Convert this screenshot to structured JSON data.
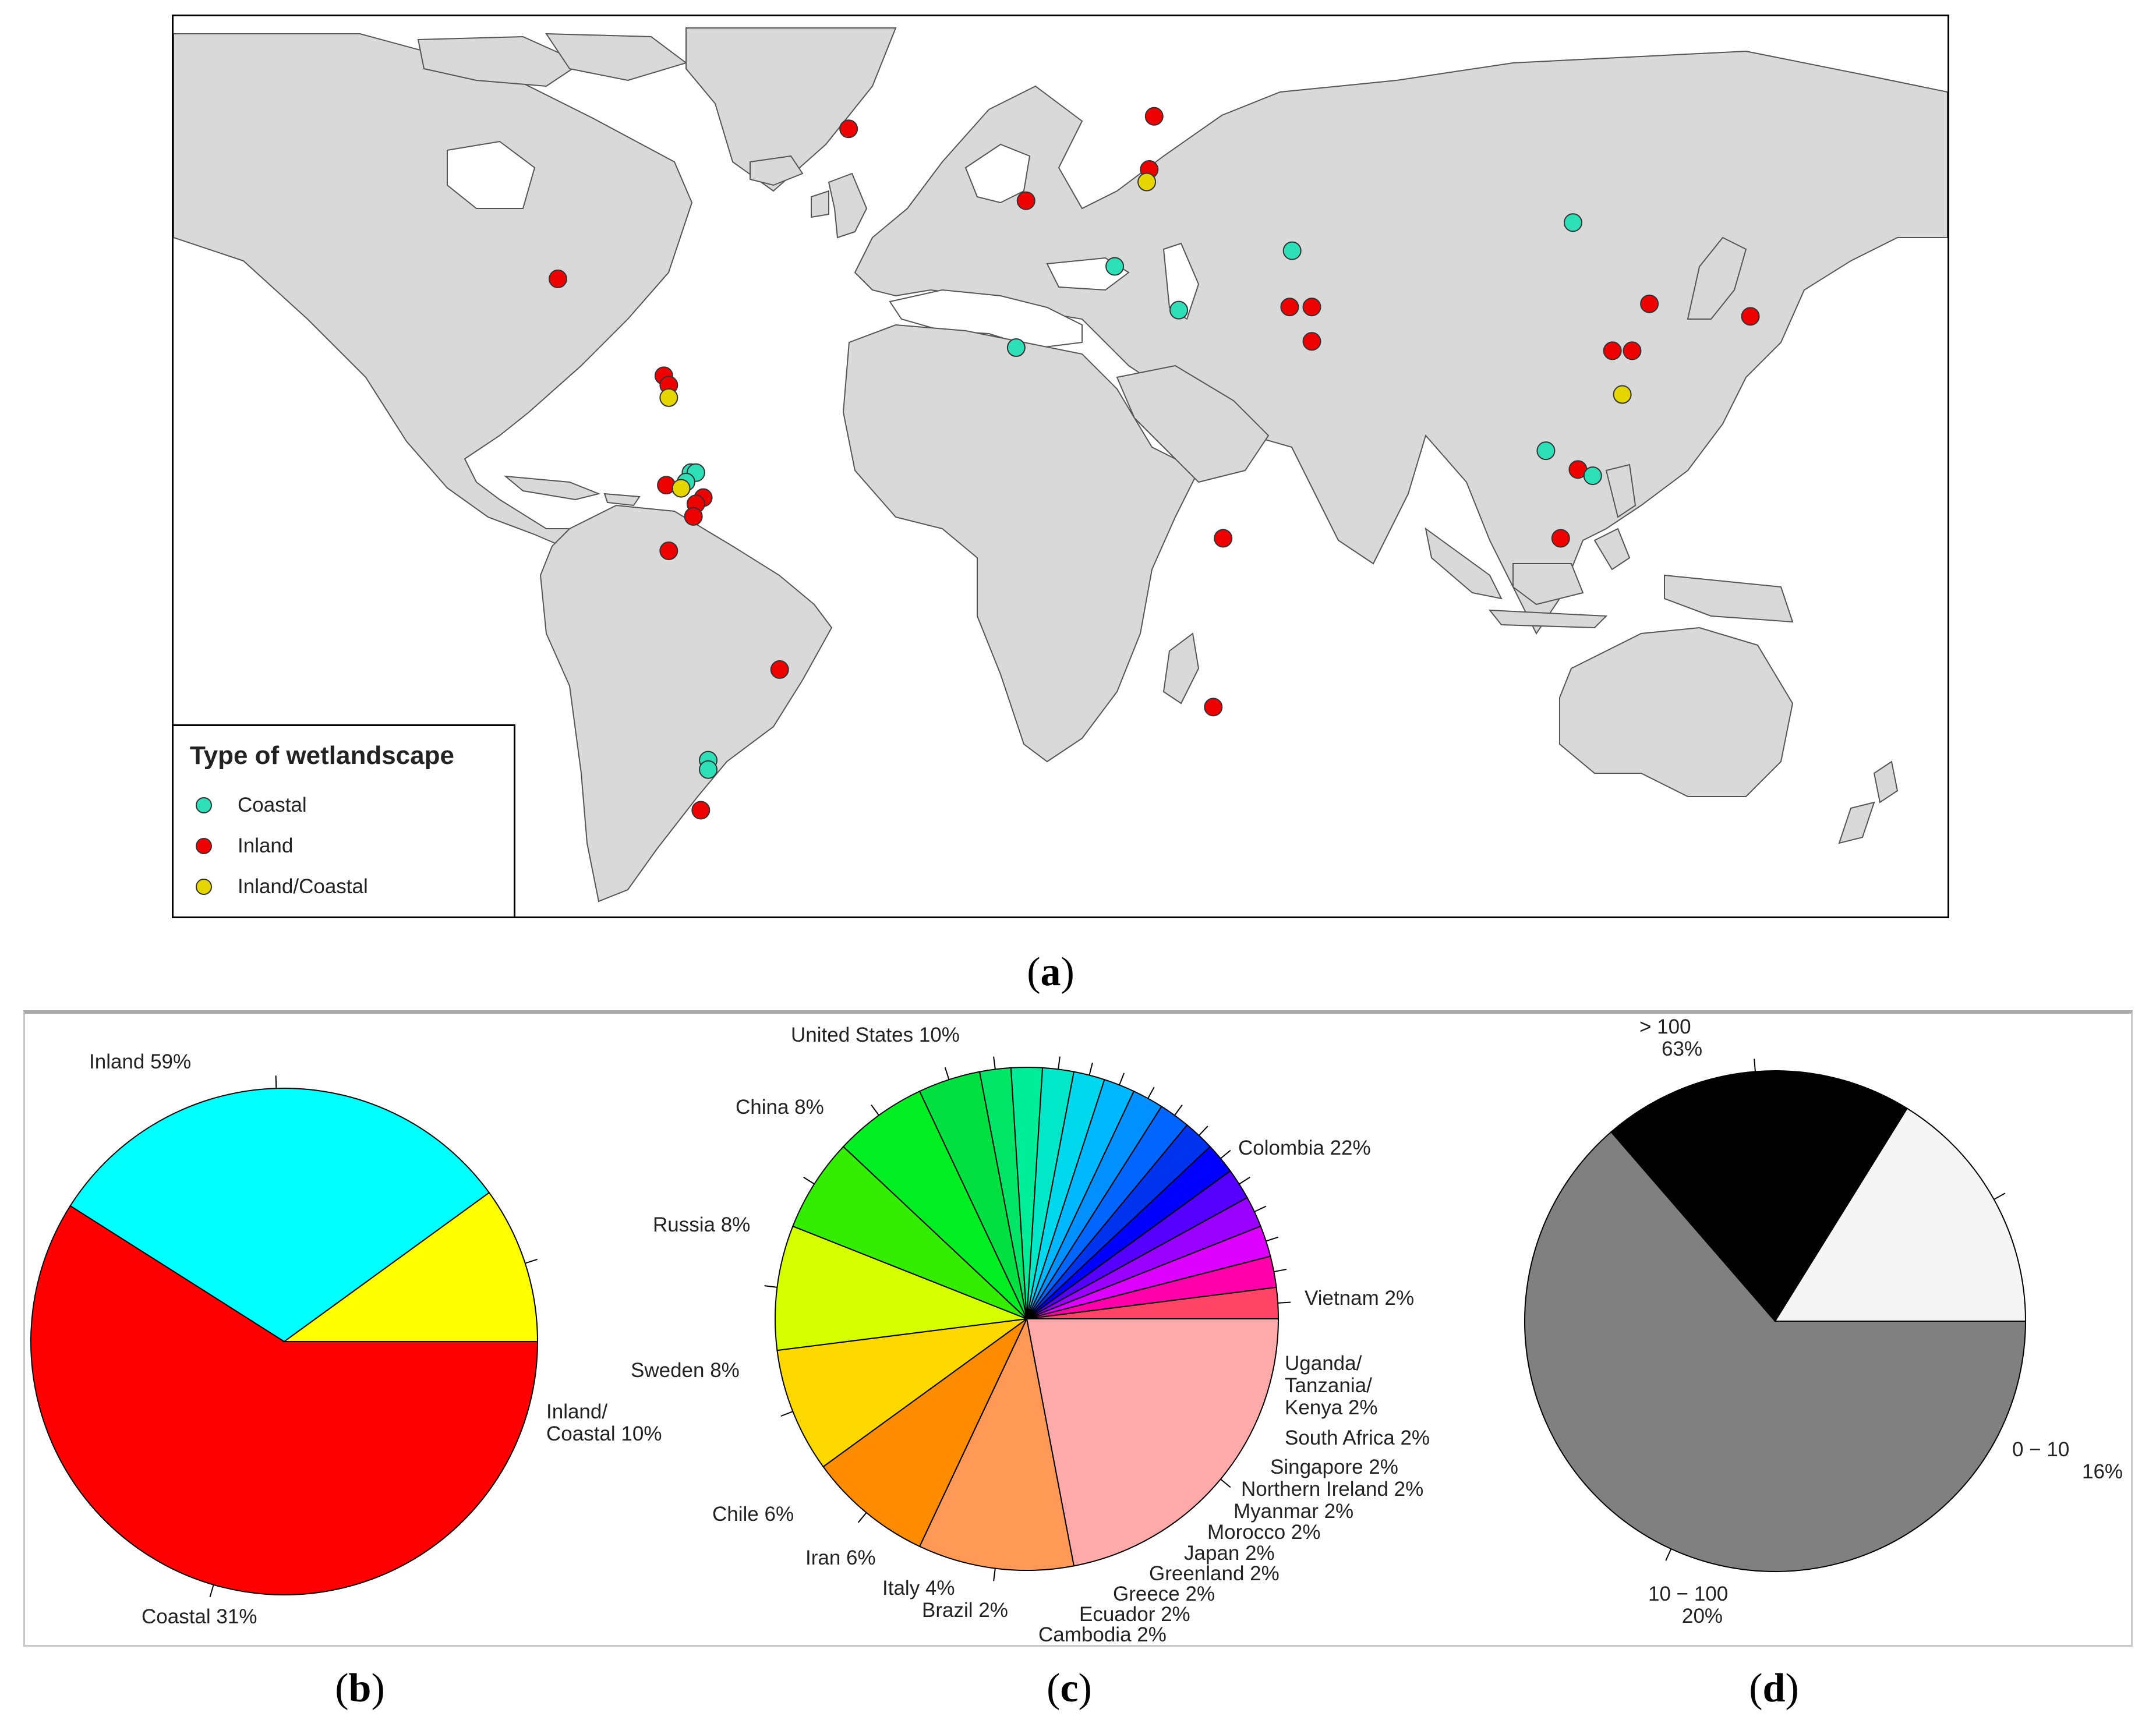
{
  "map": {
    "legend_title": "Type of wetlandscape",
    "legend": [
      {
        "label": "Coastal",
        "color": "#2de0b8"
      },
      {
        "label": "Inland",
        "color": "#ee0000"
      },
      {
        "label": "Inland/Coastal",
        "color": "#e6d600"
      }
    ]
  },
  "captions": {
    "a": {
      "open": "(",
      "letter": "a",
      "close": ")"
    },
    "b": {
      "open": "(",
      "letter": "b",
      "close": ")"
    },
    "c": {
      "open": "(",
      "letter": "c",
      "close": ")"
    },
    "d": {
      "open": "(",
      "letter": "d",
      "close": ")"
    }
  },
  "chart_data": [
    {
      "type": "scatter",
      "description_of_axes": "longitude / latitude",
      "x_name": "longitude",
      "y_name": "latitude",
      "points": [
        {
          "lon": -43,
          "lat": 66,
          "type": "Inland"
        },
        {
          "lon": 19,
          "lat": 68,
          "type": "Inland"
        },
        {
          "lon": 18,
          "lat": 59.5,
          "type": "Inland"
        },
        {
          "lon": 17.5,
          "lat": 57.5,
          "type": "Inland/Coastal"
        },
        {
          "lon": -7,
          "lat": 54.5,
          "type": "Inland"
        },
        {
          "lon": -102,
          "lat": 42,
          "type": "Inland"
        },
        {
          "lon": 11,
          "lat": 44,
          "type": "Coastal"
        },
        {
          "lon": 24,
          "lat": 37,
          "type": "Coastal"
        },
        {
          "lon": -9,
          "lat": 31,
          "type": "Coastal"
        },
        {
          "lon": 47,
          "lat": 46.5,
          "type": "Coastal"
        },
        {
          "lon": 104,
          "lat": 51,
          "type": "Coastal"
        },
        {
          "lon": 46.5,
          "lat": 37.5,
          "type": "Inland"
        },
        {
          "lon": 51,
          "lat": 37.5,
          "type": "Inland"
        },
        {
          "lon": 51,
          "lat": 32,
          "type": "Inland"
        },
        {
          "lon": 119.5,
          "lat": 38,
          "type": "Inland"
        },
        {
          "lon": 112,
          "lat": 30.5,
          "type": "Inland"
        },
        {
          "lon": 116,
          "lat": 30.5,
          "type": "Inland"
        },
        {
          "lon": 114,
          "lat": 23.5,
          "type": "Inland/Coastal"
        },
        {
          "lon": 140,
          "lat": 36,
          "type": "Inland"
        },
        {
          "lon": 98.5,
          "lat": 14.5,
          "type": "Coastal"
        },
        {
          "lon": 105,
          "lat": 11.5,
          "type": "Inland"
        },
        {
          "lon": 108,
          "lat": 10.5,
          "type": "Coastal"
        },
        {
          "lon": 101.5,
          "lat": 0.5,
          "type": "Inland"
        },
        {
          "lon": 33,
          "lat": 0.5,
          "type": "Inland"
        },
        {
          "lon": 31,
          "lat": -26.5,
          "type": "Inland"
        },
        {
          "lon": -80.5,
          "lat": 26.5,
          "type": "Inland"
        },
        {
          "lon": -79.5,
          "lat": 25,
          "type": "Inland"
        },
        {
          "lon": -79.5,
          "lat": 23,
          "type": "Inland/Coastal"
        },
        {
          "lon": -75,
          "lat": 11,
          "type": "Coastal"
        },
        {
          "lon": -74,
          "lat": 11,
          "type": "Coastal"
        },
        {
          "lon": -76,
          "lat": 9.5,
          "type": "Coastal"
        },
        {
          "lon": -80,
          "lat": 9,
          "type": "Inland"
        },
        {
          "lon": -77,
          "lat": 8.5,
          "type": "Inland/Coastal"
        },
        {
          "lon": -72.5,
          "lat": 7,
          "type": "Inland"
        },
        {
          "lon": -74,
          "lat": 6,
          "type": "Inland"
        },
        {
          "lon": -74.5,
          "lat": 4,
          "type": "Inland"
        },
        {
          "lon": -79.5,
          "lat": -1.5,
          "type": "Inland"
        },
        {
          "lon": -57,
          "lat": -20.5,
          "type": "Inland"
        },
        {
          "lon": -71.5,
          "lat": -35,
          "type": "Coastal"
        },
        {
          "lon": -71.5,
          "lat": -36.5,
          "type": "Coastal"
        },
        {
          "lon": -73,
          "lat": -43,
          "type": "Inland"
        }
      ]
    },
    {
      "type": "pie",
      "slices": [
        {
          "label": "Inland 59%",
          "value": 59,
          "color": "#ff0000"
        },
        {
          "label": "Coastal 31%",
          "value": 31,
          "color": "#00ffff"
        },
        {
          "label_lines": [
            "Inland/",
            "Coastal 10%"
          ],
          "value": 10,
          "color": "#ffff00"
        }
      ]
    },
    {
      "type": "pie",
      "slices": [
        {
          "label": "Colombia 22%",
          "value": 22,
          "color": "#ffaaaa"
        },
        {
          "label": "United States 10%",
          "value": 10,
          "color": "#ff9955"
        },
        {
          "label": "China 8%",
          "value": 8,
          "color": "#ff8c00"
        },
        {
          "label": "Russia 8%",
          "value": 8,
          "color": "#ffd800"
        },
        {
          "label": "Sweden 8%",
          "value": 8,
          "color": "#d6ff00"
        },
        {
          "label": "Chile 6%",
          "value": 6,
          "color": "#33ee00"
        },
        {
          "label": "Iran 6%",
          "value": 6,
          "color": "#00ee22"
        },
        {
          "label": "Italy 4%",
          "value": 4,
          "color": "#00e040"
        },
        {
          "label": "Brazil 2%",
          "value": 2,
          "color": "#00e566"
        },
        {
          "label": "",
          "value": 2,
          "color": "#00ee99"
        },
        {
          "label": "Cambodia 2%",
          "value": 2,
          "color": "#00e8c8"
        },
        {
          "label": "Ecuador 2%",
          "value": 2,
          "color": "#00d8ee"
        },
        {
          "label": "Greece 2%",
          "value": 2,
          "color": "#00b8ff"
        },
        {
          "label": "Greenland 2%",
          "value": 2,
          "color": "#0090ff"
        },
        {
          "label": "Japan 2%",
          "value": 2,
          "color": "#0066ff"
        },
        {
          "label": "Morocco 2%",
          "value": 2,
          "color": "#0033ee"
        },
        {
          "label": "Myanmar 2%",
          "value": 2,
          "color": "#0000ff"
        },
        {
          "label": "Northern Ireland 2%",
          "value": 2,
          "color": "#5500ff"
        },
        {
          "label": "Singapore 2%",
          "value": 2,
          "color": "#9900ff"
        },
        {
          "label": "South Africa 2%",
          "value": 2,
          "color": "#dd00ff"
        },
        {
          "label_lines": [
            "Uganda/",
            "Tanzania/",
            "Kenya 2%"
          ],
          "value": 2,
          "color": "#ff00aa"
        },
        {
          "label": "Vietnam 2%",
          "value": 2,
          "color": "#ff4466"
        }
      ]
    },
    {
      "type": "pie",
      "slices": [
        {
          "label_lines": [
            "> 100",
            "63%"
          ],
          "value": 63,
          "color": "#808080"
        },
        {
          "label_lines": [
            "10 − 100",
            "20%"
          ],
          "value": 20,
          "color": "#000000"
        },
        {
          "label_lines": [
            "0 − 10",
            "16%"
          ],
          "value": 16,
          "color": "#f5f5f5"
        }
      ]
    }
  ]
}
